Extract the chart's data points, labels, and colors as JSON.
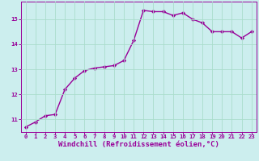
{
  "x": [
    0,
    1,
    2,
    3,
    4,
    5,
    6,
    7,
    8,
    9,
    10,
    11,
    12,
    13,
    14,
    15,
    16,
    17,
    18,
    19,
    20,
    21,
    22,
    23
  ],
  "y": [
    10.7,
    10.9,
    11.15,
    11.2,
    12.2,
    12.65,
    12.95,
    13.05,
    13.1,
    13.15,
    13.35,
    14.15,
    15.35,
    15.3,
    15.3,
    15.15,
    15.25,
    15.0,
    14.85,
    14.5,
    14.5,
    14.5,
    14.25,
    14.5
  ],
  "line_color": "#990099",
  "marker": "D",
  "markersize": 2.2,
  "linewidth": 1.0,
  "bg_color": "#cceeee",
  "grid_color": "#aaddcc",
  "xlabel": "Windchill (Refroidissement éolien,°C)",
  "xlabel_color": "#990099",
  "xlabel_fontsize": 6.5,
  "tick_color": "#990099",
  "tick_fontsize": 5.2,
  "ylim": [
    10.5,
    15.7
  ],
  "yticks": [
    11,
    12,
    13,
    14,
    15
  ],
  "xlim": [
    -0.5,
    23.5
  ],
  "xticks": [
    0,
    1,
    2,
    3,
    4,
    5,
    6,
    7,
    8,
    9,
    10,
    11,
    12,
    13,
    14,
    15,
    16,
    17,
    18,
    19,
    20,
    21,
    22,
    23
  ]
}
